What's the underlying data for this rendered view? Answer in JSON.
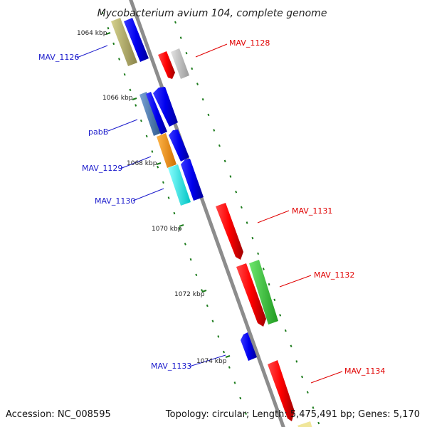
{
  "title": "Mycobacterium avium 104, complete genome",
  "footer": {
    "accession": "Accession: NC_008595",
    "topology": "Topology: circular; Length: 5,475,491 bp; Genes: 5,170"
  },
  "ticks": [
    "1064 kbp",
    "1066 kbp",
    "1068 kbp",
    "1070 kbp",
    "1072 kbp",
    "1074 kbp"
  ],
  "gene_labels": {
    "mav1126": "MAV_1126",
    "pabB": "pabB",
    "mav1129": "MAV_1129",
    "mav1130": "MAV_1130",
    "mav1133": "MAV_1133",
    "mav1128": "MAV_1128",
    "mav1131": "MAV_1131",
    "mav1132": "MAV_1132",
    "mav1134": "MAV_1134"
  },
  "colors": {
    "backbone": "#8c8c8c",
    "minus_strand": "#0000ee",
    "plus_strand": "#ff0000",
    "tick_green": "#1a7a1a",
    "label_blue": "#1a1acc",
    "label_red": "#e00000",
    "olive": "#b9b46a",
    "steel": "#4f7fb8",
    "orange": "#ff9900",
    "cyan": "#00f2f2",
    "green": "#33cc33",
    "silver": "#c0c0c0",
    "cream": "#f0e69a"
  }
}
